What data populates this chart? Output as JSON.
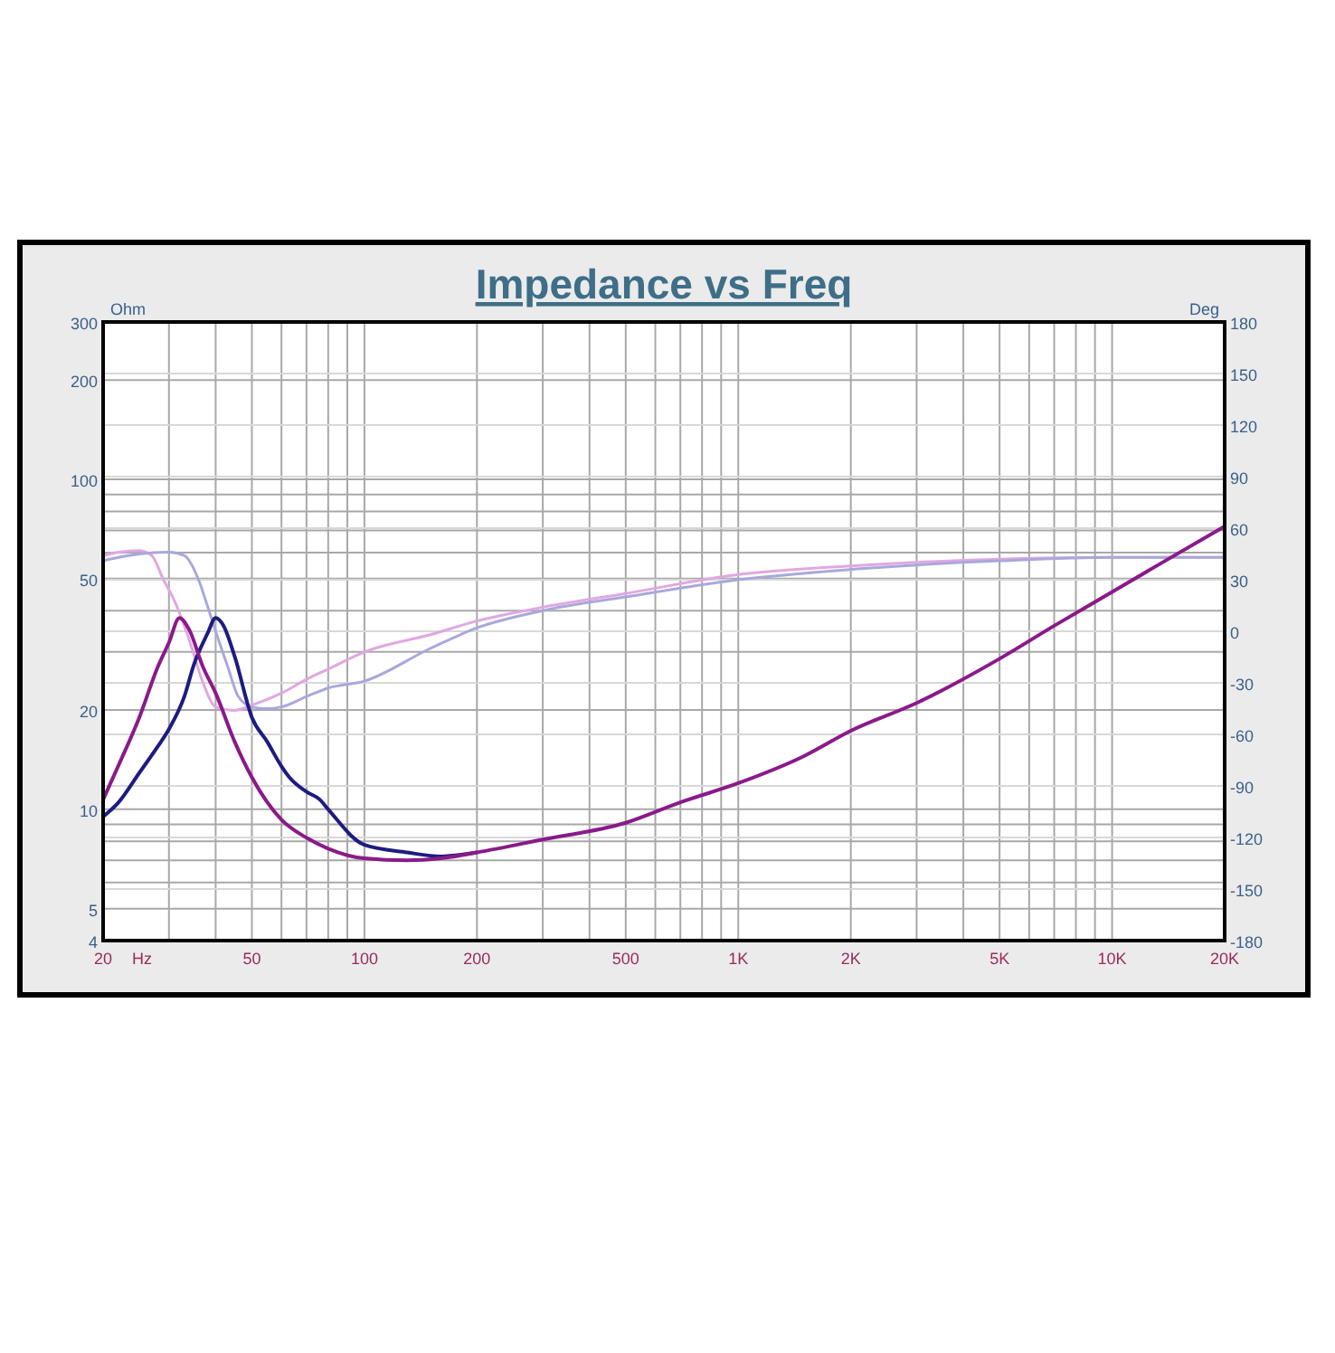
{
  "chart_data": {
    "type": "line",
    "title": "Impedance vs Freq",
    "xlabel": "Hz",
    "ylabel": "Ohm",
    "y2label": "Deg",
    "log": "xy",
    "grid": true,
    "xlim": [
      20,
      20000
    ],
    "xticks": [
      20,
      50,
      100,
      200,
      500,
      {
        "value": 1000,
        "label": "1K"
      },
      {
        "value": 2000,
        "label": "2K"
      },
      {
        "value": 5000,
        "label": "5K"
      },
      {
        "value": 10000,
        "label": "10K"
      },
      {
        "value": 20000,
        "label": "20K"
      }
    ],
    "ylim": [
      4,
      300
    ],
    "yticks": [
      4,
      5,
      10,
      20,
      50,
      100,
      200,
      300
    ],
    "y2lim": [
      -180,
      180
    ],
    "y2ticks": [
      -180,
      -150,
      -120,
      -90,
      -60,
      -30,
      0,
      30,
      60,
      90,
      120,
      150,
      180
    ],
    "series": [
      {
        "color": "#e0a8e0",
        "axis": "y2",
        "x": [
          20,
          22,
          25,
          27,
          29,
          31,
          34,
          37,
          40,
          45,
          50,
          60,
          70,
          80,
          100,
          150,
          200,
          300,
          500,
          1000,
          2000,
          5000,
          10000,
          20000
        ],
        "values": [
          44,
          46,
          47,
          44,
          30,
          18,
          -5,
          -30,
          -44,
          -46,
          -43,
          -36,
          -28,
          -22,
          -12,
          -2,
          6,
          14,
          22,
          33,
          38,
          42,
          43,
          43
        ]
      },
      {
        "color": "#a8a8dc",
        "axis": "y2",
        "x": [
          20,
          22,
          25,
          30,
          33,
          36,
          38,
          40,
          43,
          46,
          50,
          55,
          60,
          70,
          80,
          100,
          150,
          200,
          300,
          500,
          1000,
          2000,
          5000,
          10000,
          20000
        ],
        "values": [
          41,
          43,
          45,
          46,
          44,
          30,
          15,
          0,
          -20,
          -38,
          -44,
          -45,
          -44,
          -38,
          -33,
          -29,
          -10,
          2,
          12,
          20,
          30,
          36,
          41,
          43,
          43
        ]
      },
      {
        "color": "#1c1c80",
        "x": [
          20,
          22,
          25,
          28,
          30,
          33,
          35,
          38,
          40,
          42,
          45,
          50,
          55,
          60,
          63,
          70,
          76,
          80,
          100,
          130,
          160,
          200
        ],
        "values": [
          9.5,
          10.5,
          12.9,
          15.5,
          17.5,
          22,
          27.5,
          34,
          38,
          36,
          29,
          19,
          16,
          13.5,
          12.5,
          11.3,
          10.7,
          10,
          7.8,
          7.4,
          7.2,
          7.4
        ]
      },
      {
        "color": "#8a1a8a",
        "x": [
          20,
          22,
          25,
          28,
          30,
          32,
          34,
          37,
          40,
          45,
          50,
          60,
          70,
          80,
          100,
          130,
          160,
          200,
          300,
          500,
          700,
          1000,
          1500,
          2000,
          3000,
          5000,
          7000,
          10000,
          14000,
          20000
        ],
        "values": [
          10.7,
          13.6,
          19,
          27,
          32,
          38,
          35,
          27,
          22.5,
          16,
          12.5,
          9.3,
          8.2,
          7.6,
          7.1,
          7.0,
          7.1,
          7.4,
          8.1,
          9.1,
          10.5,
          12,
          14.5,
          17.3,
          21,
          28.6,
          36,
          45.6,
          57,
          72
        ]
      }
    ]
  }
}
